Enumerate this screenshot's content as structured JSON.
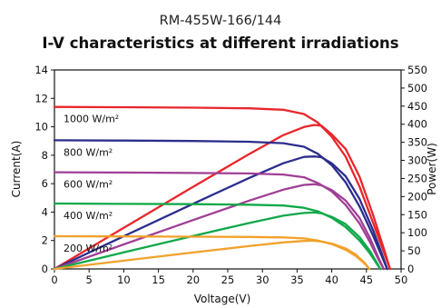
{
  "chart_data": {
    "type": "line",
    "subtitle": "RM-455W-166/144",
    "title": "I-V characteristics at different irradiations",
    "xlabel": "Voltage(V)",
    "ylabel": "Current(A)",
    "y2label": "Power(W)",
    "xlim": [
      0,
      50
    ],
    "ylim": [
      0,
      14
    ],
    "y2lim": [
      0,
      550
    ],
    "xticks": [
      "0",
      "5",
      "10",
      "15",
      "20",
      "25",
      "30",
      "35",
      "40",
      "45",
      "50"
    ],
    "yticks": [
      "0",
      "2",
      "4",
      "6",
      "8",
      "10",
      "12",
      "14"
    ],
    "y2ticks": [
      "0",
      "50",
      "100",
      "150",
      "200",
      "250",
      "300",
      "350",
      "400",
      "450",
      "500",
      "550"
    ],
    "grid": false,
    "legend": "inline labels",
    "colors": {
      "1000": "#e8262b",
      "800": "#2b2e8c",
      "600": "#a03f95",
      "400": "#11a84a",
      "200": "#f2a12b"
    },
    "iv_curves": [
      {
        "name": "1000 W/m²",
        "color_key": "1000",
        "points": [
          [
            0,
            11.4
          ],
          [
            10,
            11.38
          ],
          [
            20,
            11.35
          ],
          [
            28,
            11.3
          ],
          [
            33,
            11.2
          ],
          [
            36,
            10.9
          ],
          [
            38,
            10.3
          ],
          [
            40,
            9.3
          ],
          [
            42,
            7.9
          ],
          [
            44,
            5.8
          ],
          [
            46,
            3.2
          ],
          [
            47.5,
            1.2
          ],
          [
            48.4,
            0
          ]
        ]
      },
      {
        "name": "800 W/m²",
        "color_key": "800",
        "points": [
          [
            0,
            9.05
          ],
          [
            10,
            9.03
          ],
          [
            20,
            9.0
          ],
          [
            28,
            8.95
          ],
          [
            33,
            8.85
          ],
          [
            36,
            8.6
          ],
          [
            38,
            8.1
          ],
          [
            40,
            7.3
          ],
          [
            42,
            6.1
          ],
          [
            44,
            4.4
          ],
          [
            46,
            2.3
          ],
          [
            47.3,
            0.8
          ],
          [
            48.0,
            0
          ]
        ]
      },
      {
        "name": "600 W/m²",
        "color_key": "600",
        "points": [
          [
            0,
            6.8
          ],
          [
            10,
            6.78
          ],
          [
            20,
            6.75
          ],
          [
            28,
            6.72
          ],
          [
            33,
            6.64
          ],
          [
            36,
            6.45
          ],
          [
            38,
            6.05
          ],
          [
            40,
            5.45
          ],
          [
            42,
            4.5
          ],
          [
            44,
            3.2
          ],
          [
            45.5,
            1.9
          ],
          [
            46.8,
            0.6
          ],
          [
            47.5,
            0
          ]
        ]
      },
      {
        "name": "400 W/m²",
        "color_key": "400",
        "points": [
          [
            0,
            4.6
          ],
          [
            10,
            4.58
          ],
          [
            20,
            4.56
          ],
          [
            28,
            4.52
          ],
          [
            33,
            4.46
          ],
          [
            36,
            4.3
          ],
          [
            38,
            4.05
          ],
          [
            40,
            3.6
          ],
          [
            42,
            2.95
          ],
          [
            44,
            2.0
          ],
          [
            45.5,
            1.1
          ],
          [
            46.6,
            0.3
          ],
          [
            47.0,
            0
          ]
        ]
      },
      {
        "name": "200 W/m²",
        "color_key": "200",
        "points": [
          [
            0,
            2.3
          ],
          [
            10,
            2.29
          ],
          [
            20,
            2.27
          ],
          [
            28,
            2.25
          ],
          [
            33,
            2.22
          ],
          [
            36,
            2.15
          ],
          [
            38,
            2.0
          ],
          [
            40,
            1.75
          ],
          [
            42,
            1.35
          ],
          [
            43.5,
            0.9
          ],
          [
            44.8,
            0.35
          ],
          [
            45.4,
            0
          ]
        ]
      }
    ],
    "pv_curves": [
      {
        "color_key": "1000",
        "points": [
          [
            0,
            0
          ],
          [
            10,
            113.8
          ],
          [
            20,
            227
          ],
          [
            28,
            316.4
          ],
          [
            33,
            369.6
          ],
          [
            36,
            392.4
          ],
          [
            37.5,
            398
          ],
          [
            38.5,
            396
          ],
          [
            40,
            372
          ],
          [
            42,
            331.8
          ],
          [
            44,
            255.2
          ],
          [
            46,
            147.2
          ],
          [
            47.5,
            57
          ],
          [
            48.4,
            0
          ]
        ]
      },
      {
        "color_key": "800",
        "points": [
          [
            0,
            0
          ],
          [
            10,
            90.3
          ],
          [
            20,
            180
          ],
          [
            28,
            250.6
          ],
          [
            33,
            292
          ],
          [
            36,
            309.6
          ],
          [
            37.5,
            311
          ],
          [
            38.5,
            309
          ],
          [
            40,
            292
          ],
          [
            42,
            256.2
          ],
          [
            44,
            193.6
          ],
          [
            46,
            105.8
          ],
          [
            47.3,
            37.8
          ],
          [
            48.0,
            0
          ]
        ]
      },
      {
        "color_key": "600",
        "points": [
          [
            0,
            0
          ],
          [
            10,
            67.8
          ],
          [
            20,
            135
          ],
          [
            28,
            188.2
          ],
          [
            33,
            219.1
          ],
          [
            36,
            232.2
          ],
          [
            37.5,
            234
          ],
          [
            38.5,
            231
          ],
          [
            40,
            218
          ],
          [
            42,
            189
          ],
          [
            44,
            140.8
          ],
          [
            45.5,
            86.5
          ],
          [
            46.8,
            28.1
          ],
          [
            47.5,
            0
          ]
        ]
      },
      {
        "color_key": "400",
        "points": [
          [
            0,
            0
          ],
          [
            10,
            45.8
          ],
          [
            20,
            91.2
          ],
          [
            28,
            126.6
          ],
          [
            33,
            147.2
          ],
          [
            36,
            154.8
          ],
          [
            37.5,
            156
          ],
          [
            38.5,
            154
          ],
          [
            40,
            144
          ],
          [
            42,
            123.9
          ],
          [
            44,
            88
          ],
          [
            45.5,
            50
          ],
          [
            46.6,
            14
          ],
          [
            47.0,
            0
          ]
        ]
      },
      {
        "color_key": "200",
        "points": [
          [
            0,
            0
          ],
          [
            10,
            22.9
          ],
          [
            20,
            45.4
          ],
          [
            28,
            63
          ],
          [
            33,
            73.3
          ],
          [
            36,
            77.4
          ],
          [
            37.3,
            78
          ],
          [
            38.5,
            75.5
          ],
          [
            40,
            70
          ],
          [
            42,
            56.7
          ],
          [
            43.5,
            39.2
          ],
          [
            44.8,
            15.7
          ],
          [
            45.4,
            0
          ]
        ]
      }
    ]
  }
}
